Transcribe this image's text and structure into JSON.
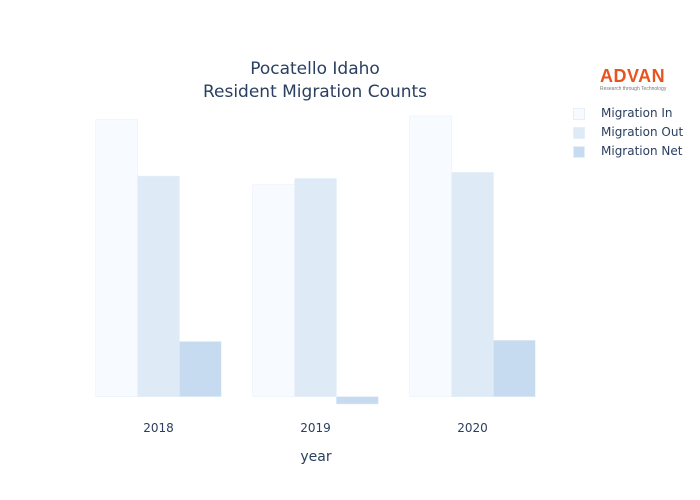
{
  "chart_data": {
    "type": "bar",
    "title": "Pocatello Idaho",
    "subtitle": "Resident Migration Counts",
    "xlabel": "year",
    "ylabel": "",
    "categories": [
      "2018",
      "2019",
      "2020"
    ],
    "series": [
      {
        "name": "Migration In",
        "values": [
          2260,
          1730,
          2290
        ]
      },
      {
        "name": "Migration Out",
        "values": [
          1800,
          1780,
          1830
        ]
      },
      {
        "name": "Migration Net",
        "values": [
          450,
          -60,
          460
        ]
      }
    ],
    "ylim": [
      -60,
      2290
    ],
    "grid": false,
    "legend_position": "top-right",
    "colors": {
      "Migration In": "#f7fbff",
      "Migration Out": "#deebf7",
      "Migration Net": "#c6dbef",
      "bar_outline": "#e6eef8"
    }
  },
  "logo": {
    "wordmark": "ADVAN",
    "tagline": "Research through Technology",
    "color": "#e8541e"
  }
}
